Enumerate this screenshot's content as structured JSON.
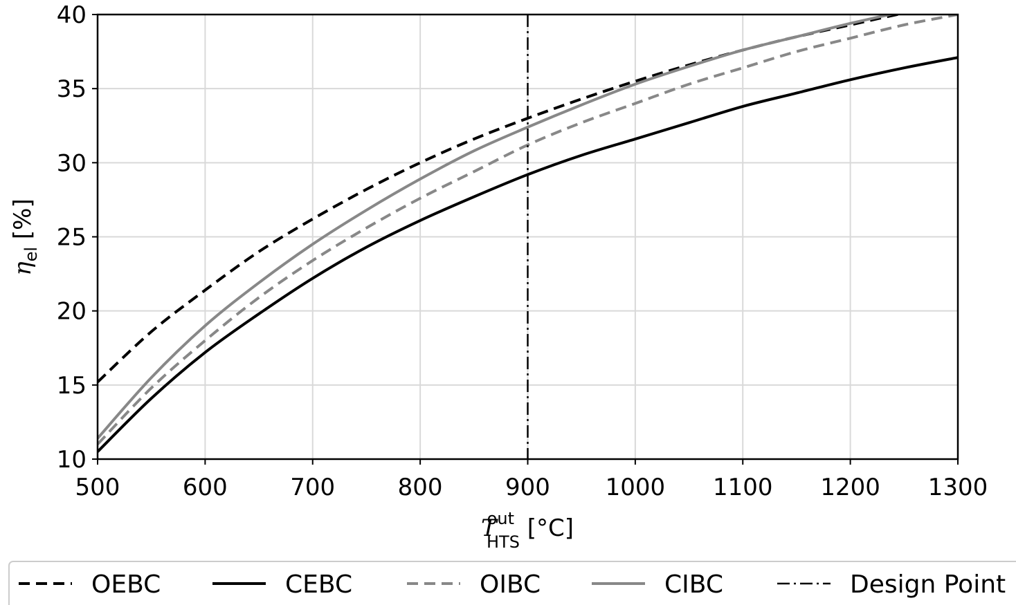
{
  "chart_data": {
    "type": "line",
    "xlabel": {
      "main": "T",
      "sup": "out",
      "sub": "HTS",
      "unit": " [°C]"
    },
    "ylabel": {
      "main": "η",
      "sub": "el",
      "unit": " [%]"
    },
    "xlim": [
      500,
      1300
    ],
    "ylim": [
      10,
      40
    ],
    "xticks": [
      500,
      600,
      700,
      800,
      900,
      1000,
      1100,
      1200,
      1300
    ],
    "yticks": [
      10,
      15,
      20,
      25,
      30,
      35,
      40
    ],
    "grid": true,
    "legend_position": "bottom",
    "x": [
      500,
      550,
      600,
      650,
      700,
      750,
      800,
      850,
      900,
      950,
      1000,
      1050,
      1100,
      1150,
      1200,
      1250,
      1300
    ],
    "series": [
      {
        "name": "OEBC",
        "color": "#000000",
        "dash": "dashed",
        "values": [
          15.2,
          18.6,
          21.4,
          24.0,
          26.2,
          28.2,
          30.0,
          31.6,
          33.0,
          34.3,
          35.5,
          36.6,
          37.6,
          38.5,
          39.3,
          40.1,
          40.8
        ]
      },
      {
        "name": "CEBC",
        "color": "#000000",
        "dash": "solid",
        "values": [
          10.5,
          14.1,
          17.2,
          19.8,
          22.2,
          24.3,
          26.1,
          27.7,
          29.2,
          30.5,
          31.6,
          32.7,
          33.8,
          34.7,
          35.6,
          36.4,
          37.1
        ]
      },
      {
        "name": "OIBC",
        "color": "#888888",
        "dash": "dashed",
        "values": [
          11.0,
          14.8,
          18.0,
          20.9,
          23.4,
          25.6,
          27.6,
          29.4,
          31.2,
          32.7,
          34.0,
          35.3,
          36.4,
          37.5,
          38.4,
          39.3,
          40.0
        ]
      },
      {
        "name": "CIBC",
        "color": "#888888",
        "dash": "solid",
        "values": [
          11.4,
          15.5,
          19.0,
          21.9,
          24.5,
          26.8,
          28.9,
          30.8,
          32.4,
          33.9,
          35.3,
          36.5,
          37.6,
          38.5,
          39.4,
          40.2,
          40.9
        ]
      }
    ],
    "design_point": {
      "name": "Design Point",
      "x": 900,
      "color": "#000000",
      "dash": "dashdot"
    }
  }
}
